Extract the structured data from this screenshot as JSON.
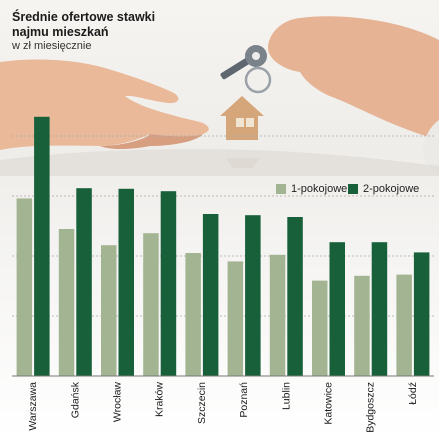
{
  "header": {
    "title_line1": "Średnie ofertowe stawki",
    "title_line2": "najmu mieszkań",
    "subtitle": "w zł miesięcznie"
  },
  "colors": {
    "series_1": "#a3b493",
    "series_2": "#17603a",
    "gridline": "#a8a8a8",
    "text": "#1a1a1a"
  },
  "illustration": [
    "hand-icon",
    "keys-icon",
    "house-keychain-icon"
  ],
  "chart_data": {
    "type": "bar",
    "title": "Średnie ofertowe stawki najmu mieszkań",
    "subtitle": "w zł miesięcznie",
    "categories": [
      "Warszawa",
      "Gdańsk",
      "Wrocław",
      "Kraków",
      "Szczecin",
      "Poznań",
      "Lublin",
      "Katowice",
      "Bydgoszcz",
      "Łódź"
    ],
    "series": [
      {
        "name": "1-pokojowe",
        "values": [
          2960,
          2450,
          2180,
          2380,
          2050,
          1910,
          2020,
          1590,
          1670,
          1690
        ]
      },
      {
        "name": "2-pokojowe",
        "values": [
          4320,
          3130,
          3120,
          3080,
          2700,
          2680,
          2650,
          2230,
          2230,
          2060
        ]
      }
    ],
    "ylim": [
      0,
      4500
    ],
    "grid": true,
    "legend_position": "top-right"
  }
}
